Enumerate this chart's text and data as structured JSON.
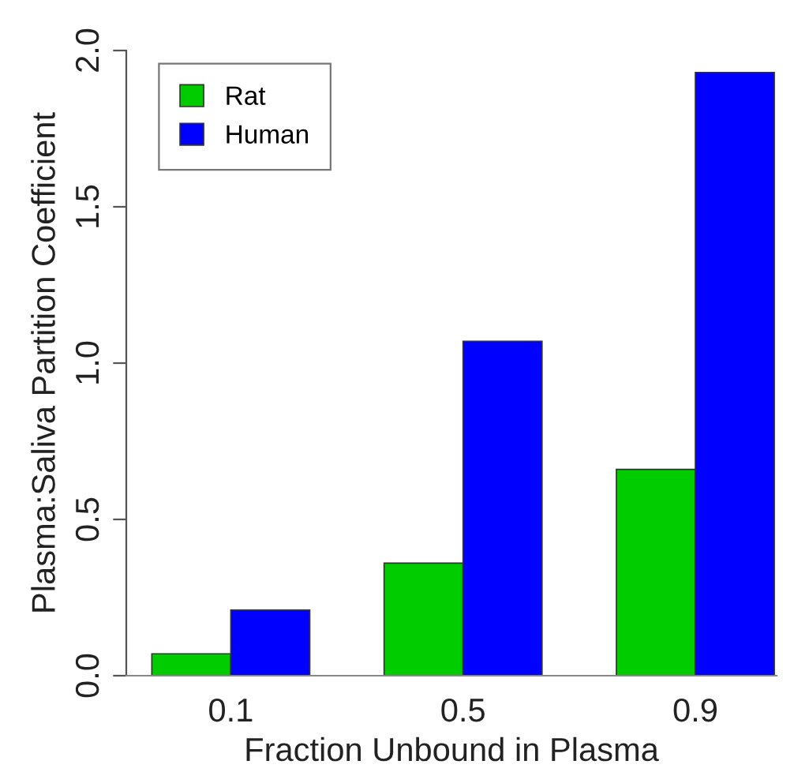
{
  "chart_data": {
    "type": "bar",
    "xlabel": "Fraction Unbound in Plasma",
    "ylabel": "Plasma:Saliva Partition Coefficient",
    "categories": [
      "0.1",
      "0.5",
      "0.9"
    ],
    "series": [
      {
        "name": "Rat",
        "color": "#00cc00",
        "values": [
          0.07,
          0.36,
          0.66
        ]
      },
      {
        "name": "Human",
        "color": "#0000ff",
        "values": [
          0.21,
          1.07,
          1.93
        ]
      }
    ],
    "ylim": [
      0,
      2.0
    ],
    "yticks": [
      {
        "value": 0,
        "label": "0.0"
      },
      {
        "value": 0.5,
        "label": "0.5"
      },
      {
        "value": 1.0,
        "label": "1.0"
      },
      {
        "value": 1.5,
        "label": "1.5"
      },
      {
        "value": 2.0,
        "label": "2.0"
      }
    ],
    "grid": false,
    "legend": "top left"
  }
}
